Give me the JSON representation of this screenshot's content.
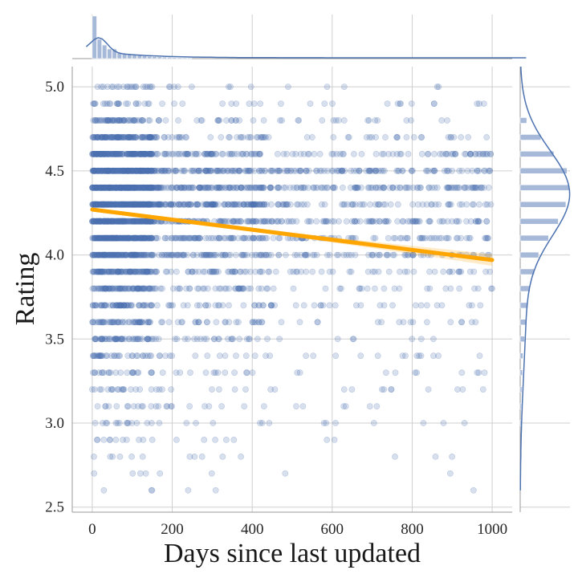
{
  "chart_data": {
    "type": "scatter",
    "xlabel": "Days since last updated",
    "ylabel": "Rating",
    "xlim": [
      -50,
      1050
    ],
    "ylim": [
      2.47,
      5.12
    ],
    "x_ticks": [
      "0",
      "200",
      "400",
      "600",
      "800",
      "1000"
    ],
    "y_ticks": [
      "2.5",
      "3.0",
      "3.5",
      "4.0",
      "4.5",
      "5.0"
    ],
    "grid": true,
    "rating_levels": [
      2.6,
      2.7,
      2.8,
      2.9,
      3.0,
      3.1,
      3.2,
      3.3,
      3.4,
      3.5,
      3.6,
      3.7,
      3.8,
      3.9,
      4.0,
      4.1,
      4.2,
      4.3,
      4.4,
      4.5,
      4.6,
      4.7,
      4.8,
      4.9,
      5.0
    ],
    "rating_level_counts": [
      6,
      8,
      14,
      18,
      28,
      30,
      38,
      45,
      60,
      85,
      95,
      110,
      140,
      180,
      260,
      330,
      380,
      420,
      460,
      380,
      280,
      170,
      95,
      45,
      35
    ],
    "regression_line": {
      "x": [
        0,
        1000
      ],
      "y": [
        4.27,
        3.97
      ],
      "color": "#ffa500"
    },
    "marginal_x_histogram": {
      "bin_width": 12.5,
      "counts": [
        22,
        10,
        7,
        5,
        5,
        3,
        2.5,
        2,
        1.8,
        1.6,
        1.4,
        1.2,
        1.0,
        0.9,
        0.8,
        0.7,
        0.6,
        0.5,
        0.45,
        0.4
      ]
    },
    "marginal_y_histogram": {
      "levels": [
        3.0,
        3.1,
        3.2,
        3.3,
        3.4,
        3.5,
        3.6,
        3.7,
        3.8,
        3.9,
        4.0,
        4.1,
        4.2,
        4.3,
        4.4,
        4.5,
        4.6,
        4.7,
        4.8
      ],
      "counts": [
        1,
        1,
        1.5,
        2,
        2.5,
        4,
        5,
        7,
        9,
        13,
        17,
        26,
        35,
        42,
        45,
        43,
        31,
        19,
        6
      ]
    },
    "point_color": "#4c72b0",
    "hist_color": "#a7b9d9",
    "line_color": "#4c72b0"
  }
}
